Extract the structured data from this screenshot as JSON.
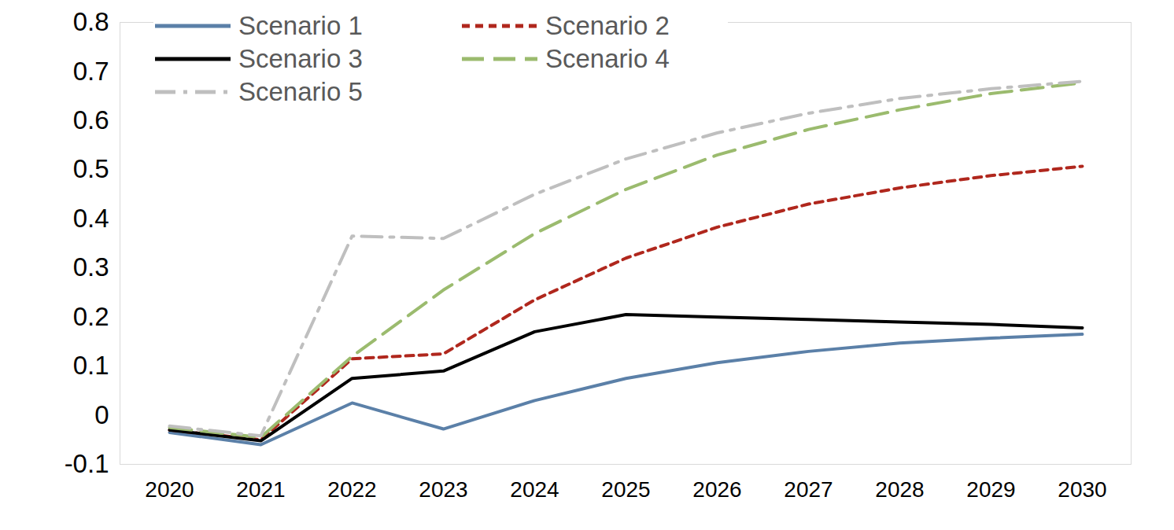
{
  "chart_data": {
    "type": "line",
    "categories": [
      "2020",
      "2021",
      "2022",
      "2023",
      "2024",
      "2025",
      "2026",
      "2027",
      "2028",
      "2029",
      "2030"
    ],
    "series": [
      {
        "name": "Scenario 1",
        "color": "#5b80a8",
        "line_style": "solid",
        "values": [
          -0.035,
          -0.06,
          0.025,
          -0.028,
          0.03,
          0.075,
          0.107,
          0.13,
          0.147,
          0.157,
          0.165
        ]
      },
      {
        "name": "Scenario 2",
        "color": "#b0271d",
        "line_style": "dashed",
        "values": [
          -0.03,
          -0.05,
          0.115,
          0.125,
          0.235,
          0.32,
          0.383,
          0.43,
          0.463,
          0.488,
          0.507
        ]
      },
      {
        "name": "Scenario 3",
        "color": "#000000",
        "line_style": "solid",
        "values": [
          -0.03,
          -0.052,
          0.075,
          0.09,
          0.17,
          0.205,
          0.2,
          0.195,
          0.19,
          0.185,
          0.178
        ]
      },
      {
        "name": "Scenario 4",
        "color": "#9bbb6e",
        "line_style": "longdash",
        "values": [
          -0.025,
          -0.045,
          0.12,
          0.255,
          0.37,
          0.46,
          0.53,
          0.582,
          0.622,
          0.655,
          0.677
        ]
      },
      {
        "name": "Scenario 5",
        "color": "#bfbfbf",
        "line_style": "dashdot",
        "values": [
          -0.022,
          -0.042,
          0.365,
          0.36,
          0.45,
          0.522,
          0.575,
          0.615,
          0.645,
          0.665,
          0.68
        ]
      }
    ],
    "ylim": [
      -0.1,
      0.8
    ],
    "yticks": [
      -0.1,
      0,
      0.1,
      0.2,
      0.3,
      0.4,
      0.5,
      0.6,
      0.7,
      0.8
    ],
    "grid": false,
    "legend": "top-left"
  }
}
